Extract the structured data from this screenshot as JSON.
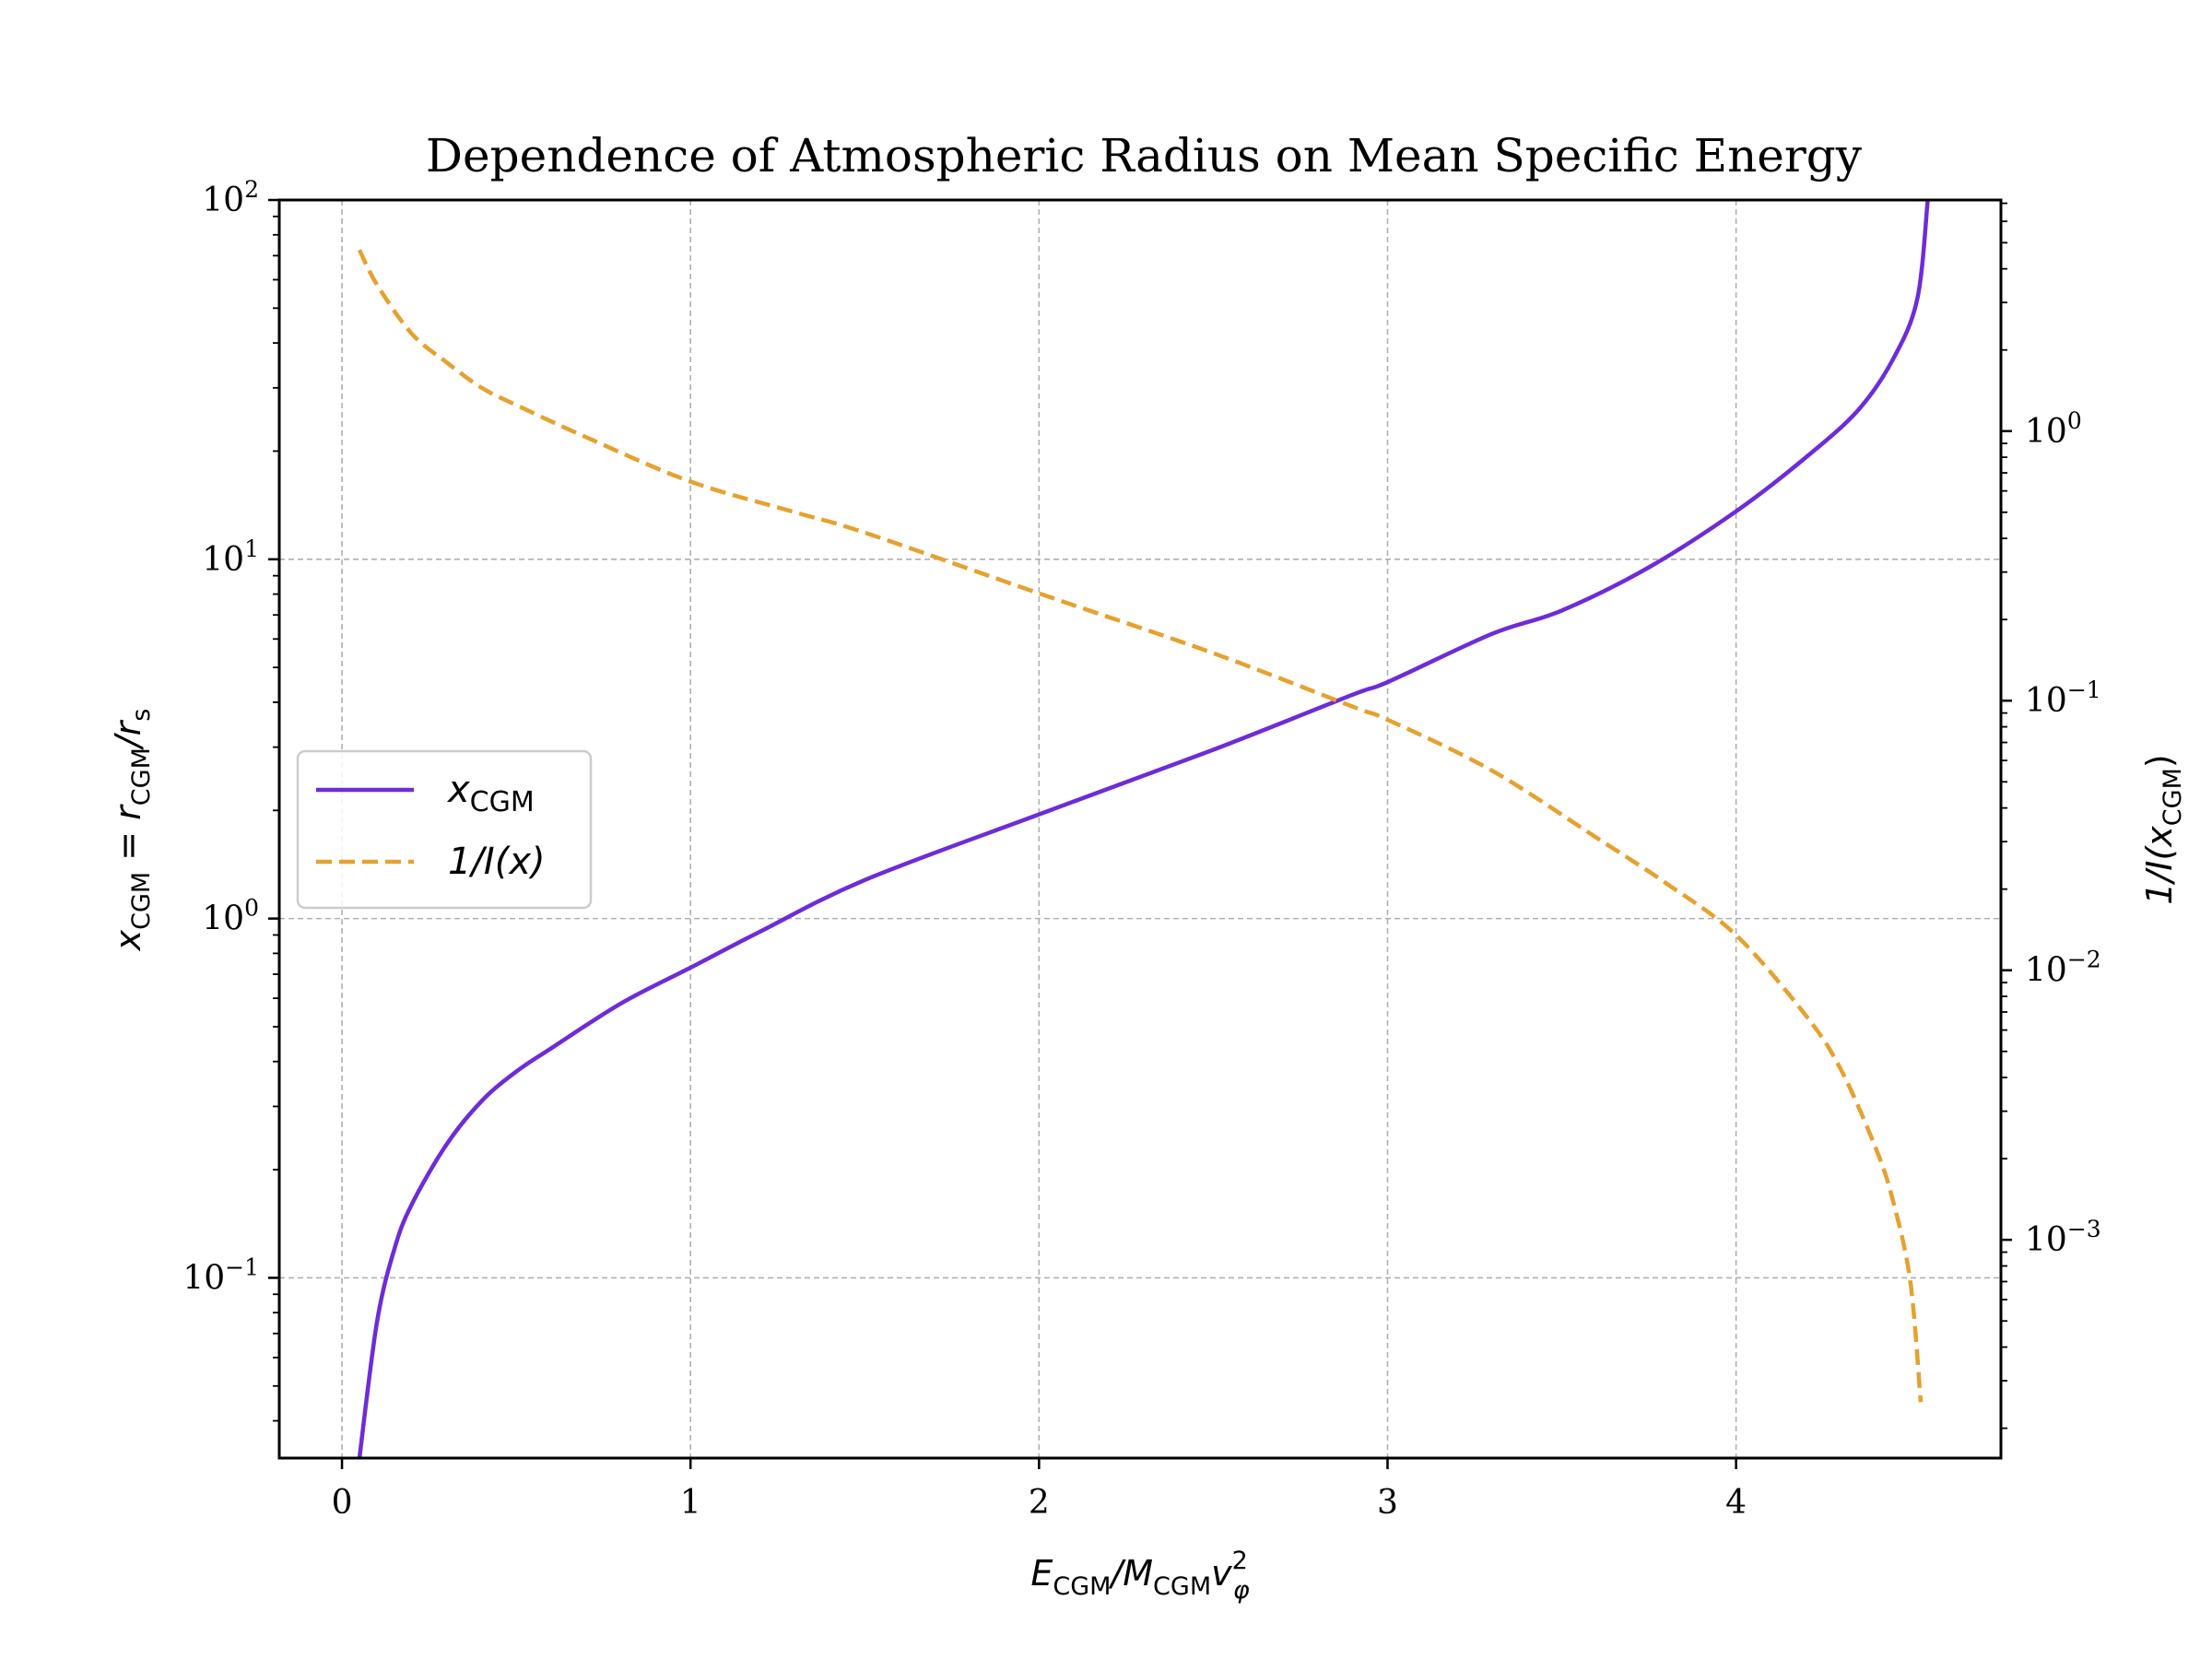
{
  "chart_data": {
    "type": "line",
    "title": "Dependence of Atmospheric Radius on Mean Specific Energy",
    "x_axis": {
      "label_main": "E",
      "label_sub1": "CGM",
      "label_mid": "/M",
      "label_sub2": "CGM",
      "label_v": "v",
      "label_sup": "2",
      "label_sub3": "φ",
      "ticks": [
        0,
        1,
        2,
        3,
        4
      ],
      "range": [
        -0.18,
        4.76
      ],
      "scale": "linear"
    },
    "y_axis_left": {
      "label_x": "x",
      "label_sub1": "CGM",
      "label_eq": " = r",
      "label_sub2": "CGM",
      "label_div": "/r",
      "label_sub3": "s",
      "range": [
        0.0315,
        100
      ],
      "scale": "log",
      "ticks": [
        {
          "value": 0.1,
          "base": "10",
          "exp": "−1"
        },
        {
          "value": 1,
          "base": "10",
          "exp": "0"
        },
        {
          "value": 10,
          "base": "10",
          "exp": "1"
        },
        {
          "value": 100,
          "base": "10",
          "exp": "2"
        }
      ]
    },
    "y_axis_right": {
      "label_pre": "1/I(x",
      "label_sub": "CGM",
      "label_post": ")",
      "range": [
        0.000155,
        7.2
      ],
      "scale": "log",
      "ticks": [
        {
          "value": 0.001,
          "base": "10",
          "exp": "−3"
        },
        {
          "value": 0.01,
          "base": "10",
          "exp": "−2"
        },
        {
          "value": 0.1,
          "base": "10",
          "exp": "−1"
        },
        {
          "value": 1,
          "base": "10",
          "exp": "0"
        }
      ]
    },
    "grid": true,
    "legend": {
      "placement": "center-left",
      "entries": [
        {
          "label_main": "x",
          "label_sub": "CGM",
          "color": "#6e2bd9",
          "style": "solid"
        },
        {
          "label_main": "1/I(x)",
          "label_sub": "",
          "color": "#e6a12e",
          "style": "dashed"
        }
      ]
    },
    "series": [
      {
        "name": "x_CGM",
        "axis": "left",
        "color": "#6e2bd9",
        "style": "solid",
        "x": [
          0.05,
          0.1,
          0.15,
          0.2,
          0.3,
          0.4,
          0.5,
          0.6,
          0.8,
          1.0,
          1.2,
          1.5,
          2.0,
          2.5,
          2.9,
          3.0,
          3.3,
          3.5,
          3.75,
          4.0,
          4.2,
          4.35,
          4.45,
          4.52,
          4.55
        ],
        "y": [
          0.0315,
          0.075,
          0.12,
          0.16,
          0.235,
          0.31,
          0.375,
          0.435,
          0.58,
          0.73,
          0.92,
          1.28,
          1.95,
          2.95,
          4.2,
          4.55,
          6.2,
          7.2,
          9.5,
          13.6,
          19.2,
          26,
          36,
          53,
          100
        ]
      },
      {
        "name": "1/I(x)",
        "axis": "right",
        "color": "#e6a12e",
        "style": "dashed",
        "x": [
          0.05,
          0.1,
          0.2,
          0.3,
          0.4,
          0.5,
          0.7,
          1.0,
          1.3,
          1.5,
          2.0,
          2.5,
          2.9,
          3.0,
          3.3,
          3.6,
          3.8,
          4.0,
          4.2,
          4.3,
          4.4,
          4.45,
          4.5,
          4.53
        ],
        "y": [
          4.7,
          3.5,
          2.3,
          1.8,
          1.45,
          1.25,
          0.95,
          0.65,
          0.5,
          0.42,
          0.25,
          0.15,
          0.095,
          0.085,
          0.055,
          0.031,
          0.021,
          0.0135,
          0.0068,
          0.0043,
          0.0022,
          0.0014,
          0.0007,
          0.00025
        ]
      }
    ]
  }
}
